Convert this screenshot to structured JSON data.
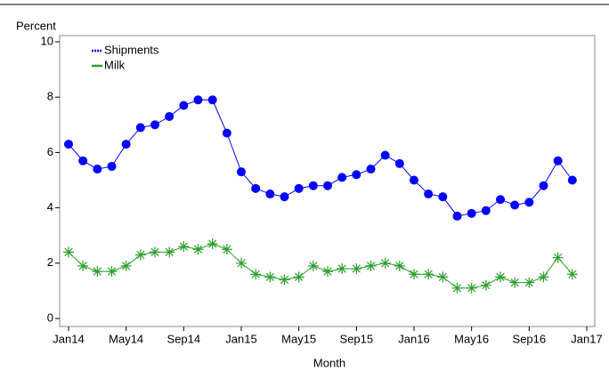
{
  "chart_data": {
    "type": "line",
    "y_label": "Percent",
    "x_label": "Month",
    "x": [
      "2014-01",
      "2014-02",
      "2014-03",
      "2014-04",
      "2014-05",
      "2014-06",
      "2014-07",
      "2014-08",
      "2014-09",
      "2014-10",
      "2014-11",
      "2014-12",
      "2015-01",
      "2015-02",
      "2015-03",
      "2015-04",
      "2015-05",
      "2015-06",
      "2015-07",
      "2015-08",
      "2015-09",
      "2015-10",
      "2015-11",
      "2015-12",
      "2016-01",
      "2016-02",
      "2016-03",
      "2016-04",
      "2016-05",
      "2016-06",
      "2016-07",
      "2016-08",
      "2016-09",
      "2016-10",
      "2016-11",
      "2016-12"
    ],
    "series": [
      {
        "name": "Shipments",
        "color": "#0000ff",
        "marker": "circle",
        "values": [
          6.3,
          5.7,
          5.4,
          5.5,
          6.3,
          6.9,
          7.0,
          7.3,
          7.7,
          7.9,
          7.9,
          6.7,
          5.3,
          4.7,
          4.5,
          4.4,
          4.7,
          4.8,
          4.8,
          5.1,
          5.2,
          5.4,
          5.9,
          5.6,
          5.0,
          4.5,
          4.4,
          3.7,
          3.8,
          3.9,
          4.3,
          4.1,
          4.2,
          4.8,
          5.7,
          5.0
        ]
      },
      {
        "name": "Milk",
        "color": "#2ca02c",
        "marker": "star",
        "values": [
          2.4,
          1.9,
          1.7,
          1.7,
          1.9,
          2.3,
          2.4,
          2.4,
          2.6,
          2.5,
          2.7,
          2.5,
          2.0,
          1.6,
          1.5,
          1.4,
          1.5,
          1.9,
          1.7,
          1.8,
          1.8,
          1.9,
          2.0,
          1.9,
          1.6,
          1.6,
          1.5,
          1.1,
          1.1,
          1.2,
          1.5,
          1.3,
          1.3,
          1.5,
          2.2,
          1.6
        ]
      }
    ],
    "xlim": [
      "2014-01",
      "2017-01"
    ],
    "xticks": [
      {
        "value": "2014-01",
        "label": "Jan14"
      },
      {
        "value": "2014-05",
        "label": "May14"
      },
      {
        "value": "2014-09",
        "label": "Sep14"
      },
      {
        "value": "2015-01",
        "label": "Jan15"
      },
      {
        "value": "2015-05",
        "label": "May15"
      },
      {
        "value": "2015-09",
        "label": "Sep15"
      },
      {
        "value": "2016-01",
        "label": "Jan16"
      },
      {
        "value": "2016-05",
        "label": "May16"
      },
      {
        "value": "2016-09",
        "label": "Sep16"
      },
      {
        "value": "2017-01",
        "label": "Jan17"
      }
    ],
    "ylim": [
      0,
      10
    ],
    "yticks": [
      0,
      2,
      4,
      6,
      8,
      10
    ],
    "legend": "upper left"
  }
}
